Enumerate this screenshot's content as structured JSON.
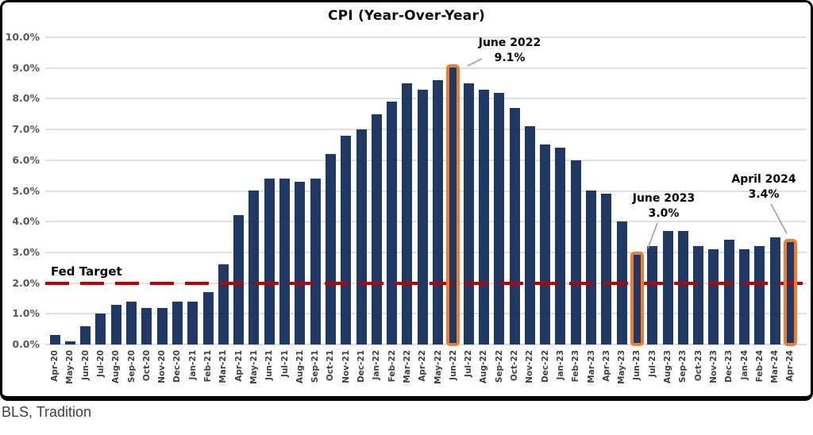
{
  "chart_data": {
    "type": "bar",
    "title": "CPI (Year-Over-Year)",
    "xlabel": "",
    "ylabel": "",
    "ylim": [
      0,
      10
    ],
    "ytick_step": 1.0,
    "ytick_labels": [
      "0.0%",
      "1.0%",
      "2.0%",
      "3.0%",
      "4.0%",
      "5.0%",
      "6.0%",
      "7.0%",
      "8.0%",
      "9.0%",
      "10.0%"
    ],
    "grid": true,
    "legend": "none",
    "bar_color": "#1F3864",
    "highlight_outline_color": "#ED7D31",
    "categories": [
      "Apr-20",
      "May-20",
      "Jun-20",
      "Jul-20",
      "Aug-20",
      "Sep-20",
      "Oct-20",
      "Nov-20",
      "Dec-20",
      "Jan-21",
      "Feb-21",
      "Mar-21",
      "Apr-21",
      "May-21",
      "Jun-21",
      "Jul-21",
      "Aug-21",
      "Sep-21",
      "Oct-21",
      "Nov-21",
      "Dec-21",
      "Jan-22",
      "Feb-22",
      "Mar-22",
      "Apr-22",
      "May-22",
      "Jun-22",
      "Jul-22",
      "Aug-22",
      "Sep-22",
      "Oct-22",
      "Nov-22",
      "Dec-22",
      "Jan-23",
      "Feb-23",
      "Mar-23",
      "Apr-23",
      "May-23",
      "Jun-23",
      "Jul-23",
      "Aug-23",
      "Sep-23",
      "Oct-23",
      "Nov-23",
      "Dec-23",
      "Jan-24",
      "Feb-24",
      "Mar-24",
      "Apr-24"
    ],
    "values": [
      0.3,
      0.1,
      0.6,
      1.0,
      1.3,
      1.4,
      1.2,
      1.2,
      1.4,
      1.4,
      1.7,
      2.6,
      4.2,
      5.0,
      5.4,
      5.4,
      5.3,
      5.4,
      6.2,
      6.8,
      7.0,
      7.5,
      7.9,
      8.5,
      8.3,
      8.6,
      9.1,
      8.5,
      8.3,
      8.2,
      7.7,
      7.1,
      6.5,
      6.4,
      6.0,
      5.0,
      4.9,
      4.0,
      3.0,
      3.2,
      3.7,
      3.7,
      3.2,
      3.1,
      3.4,
      3.1,
      3.2,
      3.5,
      3.4
    ],
    "highlighted_categories": [
      "Jun-22",
      "Jun-23",
      "Apr-24"
    ],
    "reference_line": {
      "label": "Fed Target",
      "value": 2.0,
      "color": "#C00000",
      "style": "dashed"
    },
    "annotations": [
      {
        "title": "June 2022",
        "value": "9.1%",
        "target_category": "Jun-22"
      },
      {
        "title": "June 2023",
        "value": "3.0%",
        "target_category": "Jun-23"
      },
      {
        "title": "April 2024",
        "value": "3.4%",
        "target_category": "Apr-24"
      }
    ]
  },
  "footer": {
    "source": "BLS, Tradition"
  }
}
